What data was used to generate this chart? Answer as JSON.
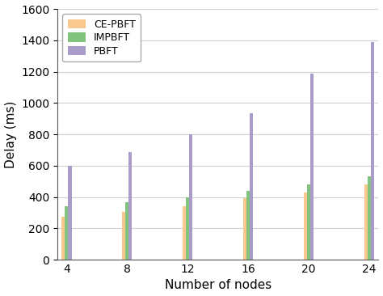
{
  "categories": [
    4,
    8,
    12,
    16,
    20,
    24
  ],
  "series": {
    "CE-PBFT": [
      275,
      305,
      340,
      390,
      430,
      480
    ],
    "IMPBFT": [
      340,
      365,
      400,
      440,
      480,
      530
    ],
    "PBFT": [
      600,
      685,
      800,
      935,
      1185,
      1390
    ]
  },
  "colors": {
    "CE-PBFT": "#F9C88E",
    "IMPBFT": "#82C47E",
    "PBFT": "#A99CC8"
  },
  "xlabel": "Number of nodes",
  "ylabel": "Delay (ms)",
  "ylim": [
    0,
    1600
  ],
  "yticks": [
    0,
    200,
    400,
    600,
    800,
    1000,
    1200,
    1400,
    1600
  ],
  "legend_order": [
    "CE-PBFT",
    "IMPBFT",
    "PBFT"
  ],
  "bar_width": 0.22,
  "figsize": [
    4.74,
    3.66
  ],
  "dpi": 100,
  "background_color": "#ffffff",
  "grid_color": "#d0d0d0"
}
